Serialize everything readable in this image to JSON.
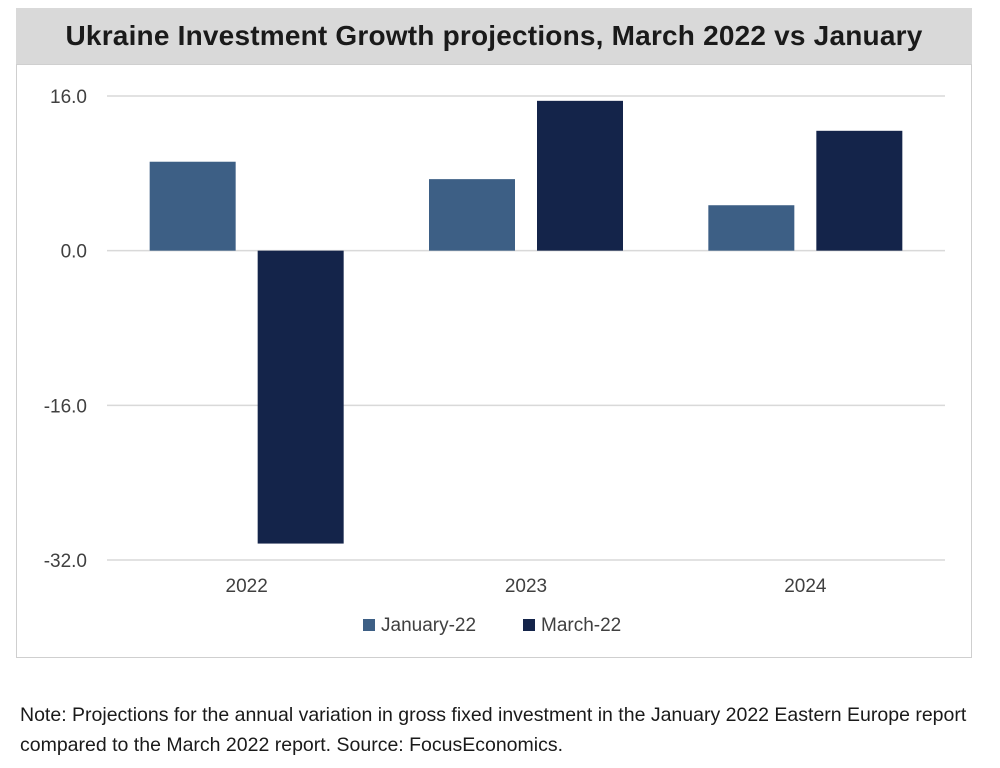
{
  "chart_title": "Ukraine Investment Growth projections, March 2022 vs January",
  "note": "Note: Projections for the annual variation in gross fixed investment in the January 2022 Eastern Europe report compared to the March 2022 report. Source: FocusEconomics.",
  "chart_data": {
    "type": "bar",
    "title": "Ukraine Investment Growth projections, March 2022 vs January",
    "xlabel": "",
    "ylabel": "",
    "categories": [
      "2022",
      "2023",
      "2024"
    ],
    "series": [
      {
        "name": "January-22",
        "values": [
          9.2,
          7.4,
          4.7
        ],
        "color": "#3d5f85"
      },
      {
        "name": "March-22",
        "values": [
          -30.3,
          15.5,
          12.4
        ],
        "color": "#14244a"
      }
    ],
    "ylim": [
      -32,
      16
    ],
    "yticks": [
      16,
      0,
      -16,
      -32
    ],
    "ytick_labels": [
      "16.0",
      "0.0",
      "-16.0",
      "-32.0"
    ],
    "grid": true,
    "legend_position": "bottom-center"
  }
}
